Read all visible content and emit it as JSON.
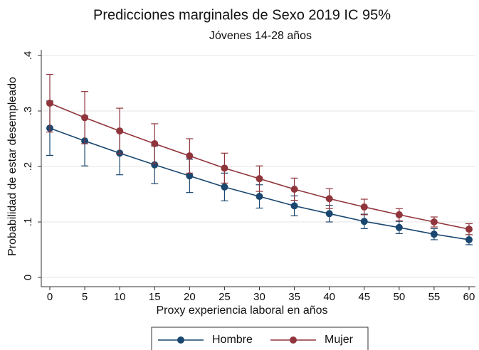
{
  "chart_data": {
    "type": "line",
    "title": "Predicciones marginales de Sexo 2019 IC 95%",
    "subtitle": "Jóvenes 14-28 años",
    "x_label": "Proxy experiencia laboral en años",
    "y_label": "Probabilidad de estar desempleado",
    "x": [
      0,
      5,
      10,
      15,
      20,
      25,
      30,
      35,
      40,
      45,
      50,
      55,
      60
    ],
    "series": [
      {
        "name": "Hombre",
        "color": "#1a476f",
        "values": [
          0.269,
          0.246,
          0.224,
          0.203,
          0.183,
          0.163,
          0.146,
          0.129,
          0.115,
          0.101,
          0.09,
          0.078,
          0.068
        ],
        "errors": [
          0.049,
          0.045,
          0.039,
          0.034,
          0.03,
          0.025,
          0.021,
          0.018,
          0.015,
          0.013,
          0.011,
          0.01,
          0.009
        ]
      },
      {
        "name": "Mujer",
        "color": "#90353b",
        "values": [
          0.314,
          0.288,
          0.264,
          0.241,
          0.219,
          0.197,
          0.178,
          0.159,
          0.142,
          0.127,
          0.113,
          0.1,
          0.087
        ],
        "errors": [
          0.052,
          0.047,
          0.041,
          0.036,
          0.031,
          0.027,
          0.023,
          0.02,
          0.018,
          0.014,
          0.011,
          0.009,
          0.01
        ]
      }
    ],
    "xlim": [
      0,
      60
    ],
    "xticks": [
      0,
      5,
      10,
      15,
      20,
      25,
      30,
      35,
      40,
      45,
      50,
      55,
      60
    ],
    "ylim": [
      0,
      0.4
    ],
    "yticks": [
      0,
      {
        "value": 0.1,
        "label": ".1"
      },
      {
        "value": 0.2,
        "label": ".2"
      },
      {
        "value": 0.3,
        "label": ".3"
      },
      {
        "value": 0.4,
        "label": ".4"
      }
    ],
    "grid": true,
    "legend": "bottom"
  }
}
